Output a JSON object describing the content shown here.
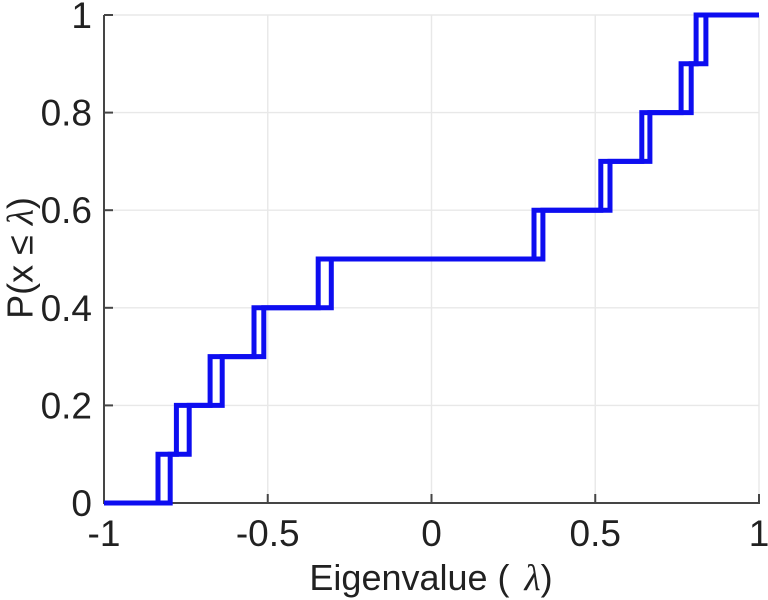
{
  "figure": {
    "xlabel": {
      "prefix": "Eigenvalue (",
      "lambda": "λ",
      "suffix": ")"
    },
    "ylabel": {
      "prefix": "P(x ≤",
      "lambda": "λ",
      "suffix": ")"
    }
  },
  "colors": {
    "line": "#0d0df0",
    "grid": "#e8e8e8",
    "axis": "#454545",
    "text": "#212121"
  },
  "chart_data": {
    "type": "line",
    "subtype": "empirical_cdf_stairs",
    "title": "",
    "xlabel": "Eigenvalue ( λ)",
    "ylabel": "P(x ≤ λ)",
    "xlim": [
      -1,
      1
    ],
    "ylim": [
      0,
      1
    ],
    "x_ticks": [
      -1,
      -0.5,
      0,
      0.5,
      1
    ],
    "x_tick_labels": [
      "-1",
      "-0.5",
      "0",
      "0.5",
      "1"
    ],
    "y_ticks": [
      0,
      0.2,
      0.4,
      0.6,
      0.8,
      1
    ],
    "y_tick_labels": [
      "0",
      "0.2",
      "0.4",
      "0.6",
      "0.8",
      "1"
    ],
    "grid": true,
    "legend": null,
    "levels": [
      0,
      0.1,
      0.2,
      0.3,
      0.4,
      0.5,
      0.6,
      0.7,
      0.8,
      0.9,
      1.0
    ],
    "series": [
      {
        "name": "ecdf-staircase-1",
        "eigenvalues": [
          -0.835,
          -0.779,
          -0.676,
          -0.542,
          -0.346,
          0.313,
          0.517,
          0.642,
          0.762,
          0.808
        ]
      },
      {
        "name": "ecdf-staircase-2",
        "eigenvalues": [
          -0.798,
          -0.74,
          -0.639,
          -0.512,
          -0.306,
          0.34,
          0.545,
          0.667,
          0.793,
          0.838
        ]
      }
    ],
    "line_width": 5
  }
}
